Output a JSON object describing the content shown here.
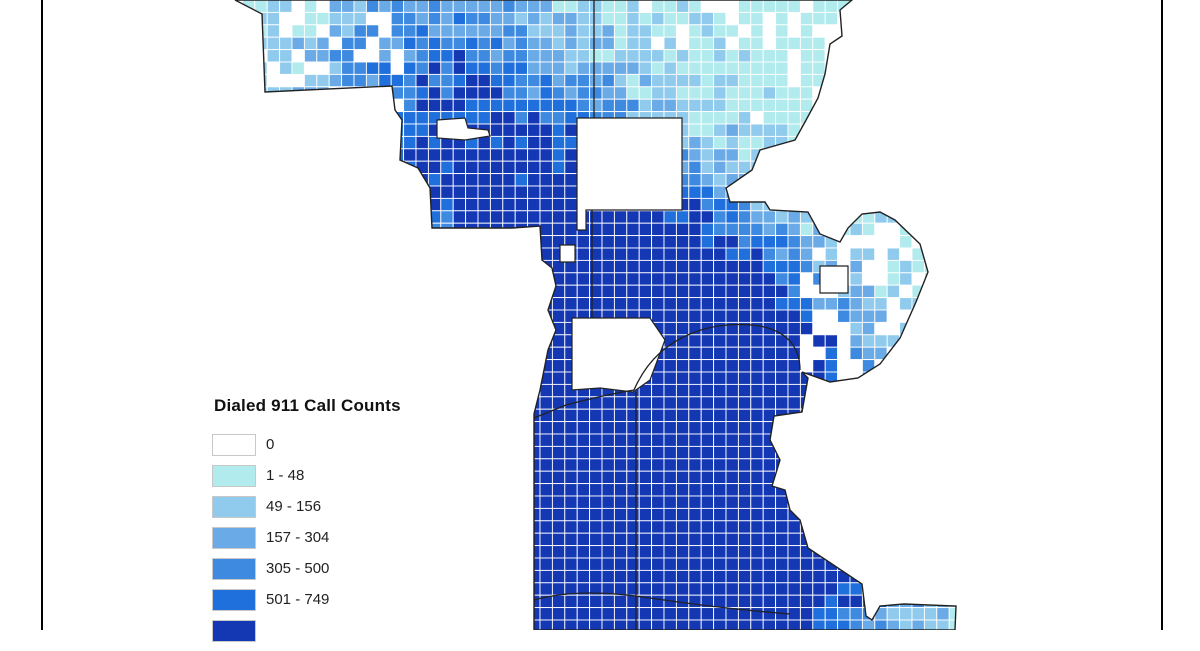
{
  "legend": {
    "title": "Dialed 911 Call Counts",
    "classes": [
      {
        "label": "0",
        "color": "#ffffff"
      },
      {
        "label": "1 - 48",
        "color": "#b2ebee"
      },
      {
        "label": "49 - 156",
        "color": "#90cbed"
      },
      {
        "label": "157 - 304",
        "color": "#6aaae6"
      },
      {
        "label": "305 - 500",
        "color": "#3f8ae1"
      },
      {
        "label": "501 - 749",
        "color": "#1f6fdc"
      },
      {
        "label": "",
        "color": "#1437b3"
      }
    ]
  },
  "colors": {
    "frame": "#000000",
    "boundary": "#222222",
    "grid_line": "#ffffff"
  }
}
